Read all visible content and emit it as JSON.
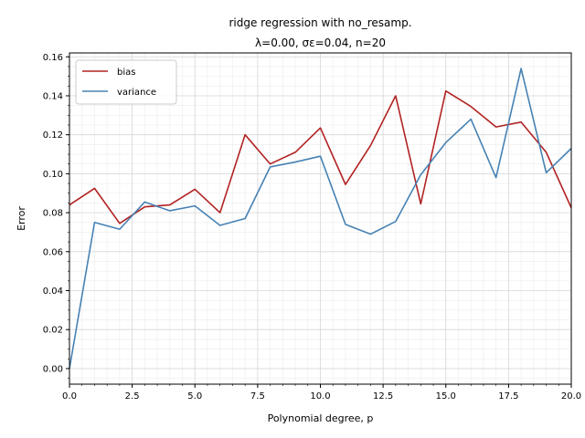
{
  "chart_data": {
    "type": "line",
    "title_line1": "ridge regression with no_resamp.",
    "title_line2": "λ=0.00,  σε=0.04,  n=20",
    "xlabel": "Polynomial degree, p",
    "ylabel": "Error",
    "xlim": [
      0,
      20
    ],
    "ylim": [
      -0.008,
      0.162
    ],
    "xticks": [
      0.0,
      2.5,
      5.0,
      7.5,
      10.0,
      12.5,
      15.0,
      17.5,
      20.0
    ],
    "xtick_labels": [
      "0.0",
      "2.5",
      "5.0",
      "7.5",
      "10.0",
      "12.5",
      "15.0",
      "17.5",
      "20.0"
    ],
    "yticks": [
      0.0,
      0.02,
      0.04,
      0.06,
      0.08,
      0.1,
      0.12,
      0.14,
      0.16
    ],
    "ytick_labels": [
      "0.00",
      "0.02",
      "0.04",
      "0.06",
      "0.08",
      "0.10",
      "0.12",
      "0.14",
      "0.16"
    ],
    "grid": true,
    "legend_position": "upper-left",
    "x": [
      0,
      1,
      2,
      3,
      4,
      5,
      6,
      7,
      8,
      9,
      10,
      11,
      12,
      13,
      14,
      15,
      16,
      17,
      18,
      19,
      20
    ],
    "series": [
      {
        "name": "bias",
        "color": "#b22222",
        "values": [
          0.084,
          0.0925,
          0.0745,
          0.083,
          0.084,
          0.092,
          0.08,
          0.12,
          0.105,
          0.111,
          0.1235,
          0.0945,
          0.1145,
          0.14,
          0.0845,
          0.1425,
          0.1345,
          0.124,
          0.1265,
          0.111,
          0.0825
        ]
      },
      {
        "name": "variance",
        "color": "#4682b4",
        "values": [
          0.0,
          0.075,
          0.0715,
          0.0855,
          0.081,
          0.0835,
          0.0735,
          0.077,
          0.1035,
          0.106,
          0.109,
          0.074,
          0.069,
          0.0755,
          0.0995,
          0.116,
          0.128,
          0.098,
          0.154,
          0.1005,
          0.113
        ]
      }
    ]
  }
}
